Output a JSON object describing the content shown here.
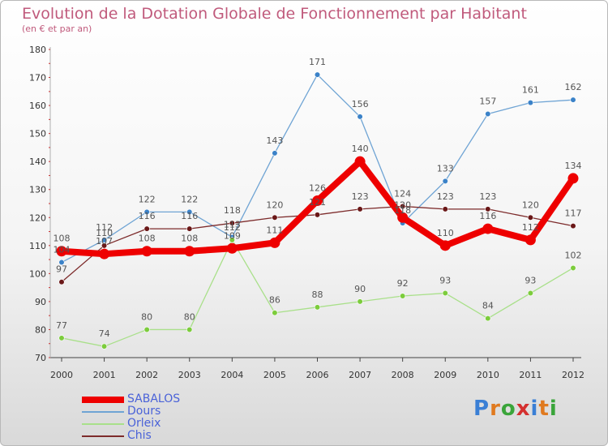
{
  "header": {
    "title": "Evolution de la Dotation Globale de Fonctionnement par Habitant",
    "subtitle": "(en € et par an)"
  },
  "logo": {
    "text": "Proxiti",
    "colors": [
      "#3a7fd5",
      "#e07a1f",
      "#3aa53a",
      "#d4302f",
      "#3a7fd5",
      "#e07a1f",
      "#3aa53a"
    ]
  },
  "chart_data": {
    "type": "line",
    "title": "Evolution de la Dotation Globale de Fonctionnement par Habitant",
    "subtitle": "(en € et par an)",
    "xlabel": "",
    "ylabel": "",
    "x": [
      "2000",
      "2001",
      "2002",
      "2003",
      "2004",
      "2005",
      "2006",
      "2007",
      "2008",
      "2009",
      "2010",
      "2011",
      "2012"
    ],
    "ylim": [
      70,
      180
    ],
    "yticks": [
      70,
      80,
      90,
      100,
      110,
      120,
      130,
      140,
      150,
      160,
      170,
      180
    ],
    "grid": false,
    "legend": "bottom-left",
    "series": [
      {
        "name": "Dours",
        "color": "#6fa4d4",
        "marker": "#3b82c8",
        "values": [
          104,
          112,
          122,
          122,
          113,
          143,
          171,
          156,
          118,
          133,
          157,
          161,
          162
        ]
      },
      {
        "name": "Orleix",
        "color": "#a9e08a",
        "marker": "#7ccc3c",
        "values": [
          77,
          74,
          80,
          80,
          112,
          86,
          88,
          90,
          92,
          93,
          84,
          93,
          102
        ]
      },
      {
        "name": "Chis",
        "color": "#7d2b2b",
        "marker": "#6a1818",
        "values": [
          97,
          110,
          116,
          116,
          118,
          120,
          121,
          123,
          124,
          123,
          123,
          120,
          117
        ]
      },
      {
        "name": "SABALOS",
        "color": "#ee0000",
        "marker": "#ee0000",
        "values": [
          108,
          107,
          108,
          108,
          109,
          111,
          126,
          140,
          120,
          110,
          116,
          112,
          134
        ]
      }
    ]
  }
}
